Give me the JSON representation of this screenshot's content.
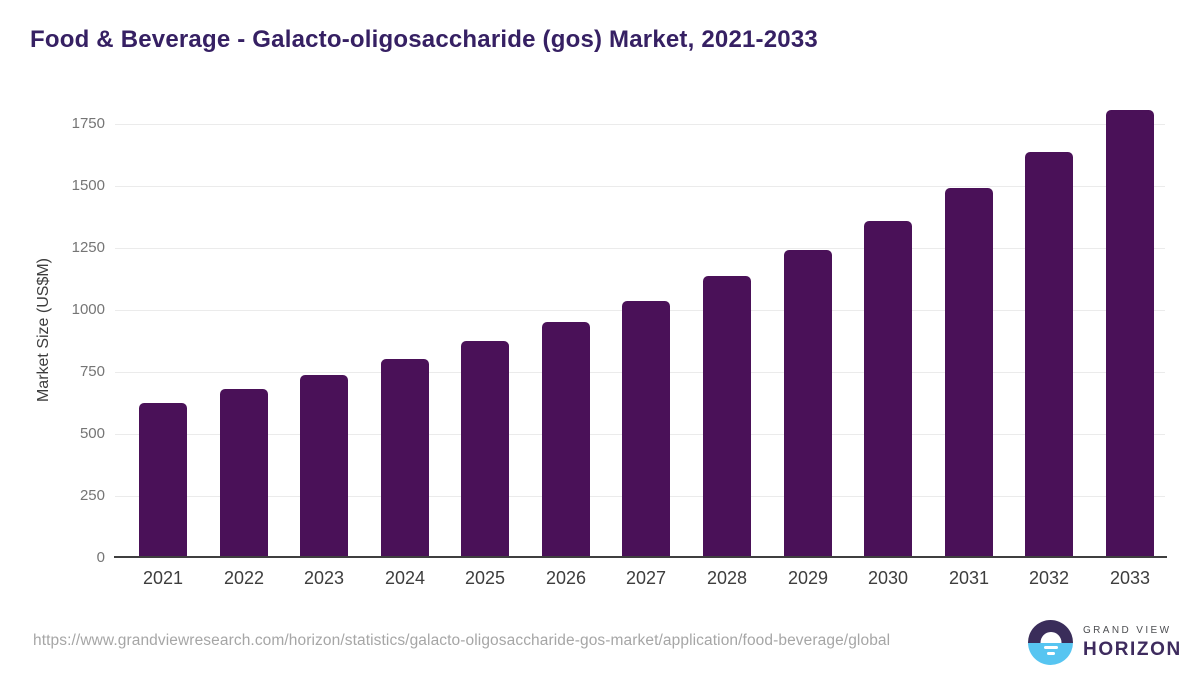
{
  "header": {
    "title": "Food & Beverage - Galacto-oligosaccharide (gos) Market, 2021-2033"
  },
  "chart_data": {
    "type": "bar",
    "title": "Food & Beverage - Galacto-oligosaccharide (gos) Market, 2021-2033",
    "categories": [
      "2021",
      "2022",
      "2023",
      "2024",
      "2025",
      "2026",
      "2027",
      "2028",
      "2029",
      "2030",
      "2031",
      "2032",
      "2033"
    ],
    "values": [
      617,
      675,
      730,
      795,
      865,
      945,
      1030,
      1130,
      1235,
      1350,
      1485,
      1630,
      1800
    ],
    "xlabel": "",
    "ylabel": "Market Size (US$M)",
    "ylim": [
      0,
      1855
    ],
    "yticks": [
      0,
      250,
      500,
      750,
      1000,
      1250,
      1500,
      1750
    ],
    "grid": true,
    "legend": false,
    "bar_color": "#4a1158"
  },
  "footer": {
    "source_url": "https://www.grandviewresearch.com/horizon/statistics/galacto-oligosaccharide-gos-market/application/food-beverage/global",
    "brand": {
      "line1": "GRAND VIEW",
      "line2": "HORIZON"
    }
  },
  "colors": {
    "title_text": "#362063",
    "bar": "#4a1158",
    "axis_title": "#3d3d3d",
    "x_tick_label": "#3d3d3d",
    "y_tick_label": "#757575",
    "gridline": "#ebebeb",
    "baseline": "#3f3f3f",
    "source_url": "#a6a6a6",
    "logo_navy": "#3a2d5a",
    "logo_blue": "#57c5f1",
    "brand_name": "#3e2b5e"
  }
}
